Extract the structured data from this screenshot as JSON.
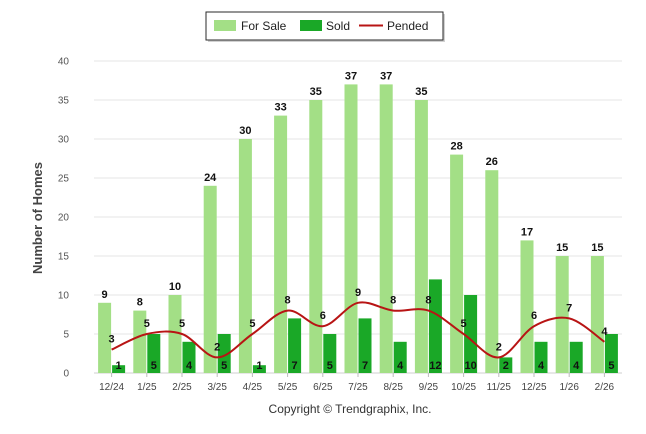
{
  "legend": {
    "items": [
      {
        "label": "For Sale",
        "color": "#a3df86",
        "kind": "bar"
      },
      {
        "label": "Sold",
        "color": "#1aa827",
        "kind": "bar"
      },
      {
        "label": "Pended",
        "color": "#b81414",
        "kind": "line"
      }
    ]
  },
  "copyright": "Copyright © Trendgraphix, Inc.",
  "chart_data": {
    "type": "bar",
    "title": "",
    "xlabel": "",
    "ylabel": "Number of Homes",
    "ylim": [
      0,
      40
    ],
    "yticks": [
      0,
      5,
      10,
      15,
      20,
      25,
      30,
      35,
      40
    ],
    "grid": true,
    "legend_position": "top-center",
    "categories": [
      "12/24",
      "1/25",
      "2/25",
      "3/25",
      "4/25",
      "5/25",
      "6/25",
      "7/25",
      "8/25",
      "9/25",
      "10/25",
      "11/25",
      "12/25",
      "1/26",
      "2/26"
    ],
    "series": [
      {
        "name": "For Sale",
        "type": "bar",
        "color": "#a3df86",
        "values": [
          9,
          8,
          10,
          24,
          30,
          33,
          35,
          37,
          37,
          35,
          28,
          26,
          17,
          15,
          15
        ]
      },
      {
        "name": "Sold",
        "type": "bar",
        "color": "#1aa827",
        "values": [
          1,
          5,
          4,
          5,
          1,
          7,
          5,
          7,
          4,
          12,
          10,
          2,
          4,
          4,
          5
        ]
      },
      {
        "name": "Pended",
        "type": "line",
        "color": "#b81414",
        "values": [
          3,
          5,
          5,
          2,
          5,
          8,
          6,
          9,
          8,
          8,
          5,
          2,
          6,
          7,
          4
        ]
      }
    ]
  }
}
